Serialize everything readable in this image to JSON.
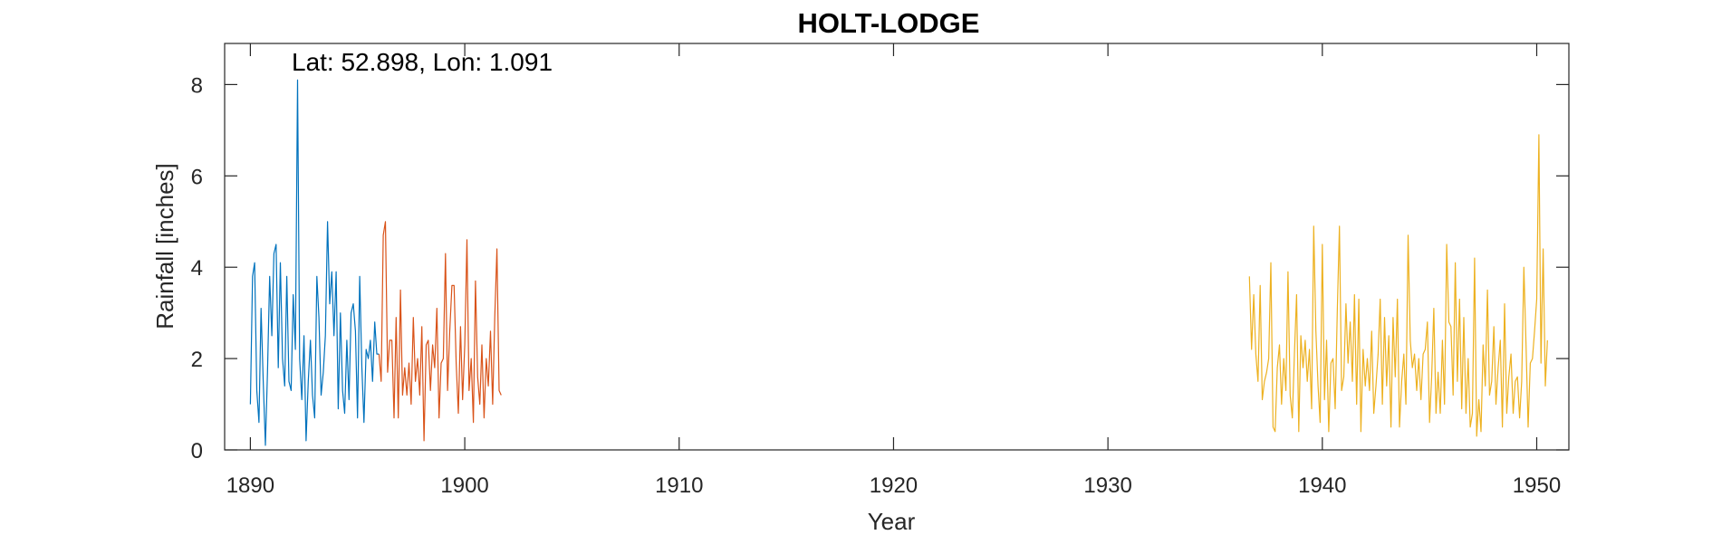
{
  "chart_data": {
    "type": "line",
    "title": "HOLT-LODGE",
    "xlabel": "Year",
    "ylabel": "Rainfall [inches]",
    "annotation": "Lat: 52.898, Lon: 1.091",
    "xlim": [
      1888.8,
      1951.5
    ],
    "ylim": [
      0,
      8.9
    ],
    "xticks": [
      1890,
      1900,
      1910,
      1920,
      1930,
      1940,
      1950
    ],
    "yticks": [
      0,
      2,
      4,
      6,
      8
    ],
    "grid": false,
    "legend": "none",
    "series": [
      {
        "color": "#0072BD",
        "x": [
          1890.0,
          1890.1,
          1890.2,
          1890.3,
          1890.4,
          1890.5,
          1890.6,
          1890.7,
          1890.8,
          1890.9,
          1891.0,
          1891.1,
          1891.2,
          1891.3,
          1891.4,
          1891.5,
          1891.6,
          1891.7,
          1891.8,
          1891.9,
          1892.0,
          1892.1,
          1892.2,
          1892.3,
          1892.4,
          1892.5,
          1892.6,
          1892.7,
          1892.8,
          1892.9,
          1893.0,
          1893.1,
          1893.2,
          1893.3,
          1893.4,
          1893.5,
          1893.6,
          1893.7,
          1893.8,
          1893.9,
          1894.0,
          1894.1,
          1894.2,
          1894.3,
          1894.4,
          1894.5,
          1894.6,
          1894.7,
          1894.8,
          1894.9,
          1895.0,
          1895.1,
          1895.2,
          1895.3,
          1895.4,
          1895.5,
          1895.6,
          1895.7,
          1895.8,
          1895.9,
          1896.0
        ],
        "values": [
          1.0,
          3.8,
          4.1,
          1.3,
          0.6,
          3.1,
          1.5,
          0.1,
          1.7,
          3.8,
          2.5,
          4.3,
          4.5,
          1.8,
          4.1,
          2.0,
          1.4,
          3.8,
          1.5,
          1.3,
          3.4,
          2.2,
          8.1,
          2.0,
          1.1,
          2.5,
          0.2,
          1.5,
          2.4,
          1.2,
          0.7,
          3.8,
          2.9,
          1.2,
          1.7,
          2.5,
          5.0,
          3.2,
          3.9,
          2.5,
          3.9,
          0.9,
          3.0,
          1.3,
          0.8,
          2.4,
          1.1,
          3.0,
          3.2,
          2.6,
          0.7,
          3.8,
          1.8,
          0.6,
          2.2,
          2.0,
          2.4,
          1.5,
          2.8,
          2.1,
          2.1
        ]
      },
      {
        "color": "#D95319",
        "x": [
          1896.0,
          1896.1,
          1896.2,
          1896.3,
          1896.4,
          1896.5,
          1896.6,
          1896.7,
          1896.8,
          1896.9,
          1897.0,
          1897.1,
          1897.2,
          1897.3,
          1897.4,
          1897.5,
          1897.6,
          1897.7,
          1897.8,
          1897.9,
          1898.0,
          1898.1,
          1898.2,
          1898.3,
          1898.4,
          1898.5,
          1898.6,
          1898.7,
          1898.8,
          1898.9,
          1899.0,
          1899.1,
          1899.2,
          1899.3,
          1899.4,
          1899.5,
          1899.6,
          1899.7,
          1899.8,
          1899.9,
          1900.0,
          1900.1,
          1900.2,
          1900.3,
          1900.4,
          1900.5,
          1900.6,
          1900.7,
          1900.8,
          1900.9,
          1901.0,
          1901.1,
          1901.2,
          1901.3,
          1901.4,
          1901.5,
          1901.6,
          1901.7
        ],
        "values": [
          2.1,
          1.5,
          4.7,
          5.0,
          1.7,
          2.4,
          2.4,
          0.7,
          2.9,
          0.7,
          3.5,
          1.2,
          1.8,
          1.2,
          1.9,
          1.0,
          2.9,
          1.5,
          2.0,
          1.2,
          2.7,
          0.2,
          2.3,
          2.4,
          1.3,
          2.3,
          1.8,
          3.1,
          0.7,
          1.9,
          2.0,
          4.3,
          1.3,
          2.6,
          3.6,
          3.6,
          1.9,
          0.8,
          2.7,
          1.1,
          2.3,
          4.6,
          1.3,
          2.0,
          0.6,
          3.7,
          1.6,
          1.0,
          2.3,
          0.7,
          2.0,
          1.4,
          2.6,
          1.0,
          2.9,
          4.4,
          1.3,
          1.2
        ]
      },
      {
        "color": "#EDB120",
        "x": [
          1936.6,
          1936.7,
          1936.8,
          1936.9,
          1937.0,
          1937.1,
          1937.2,
          1937.3,
          1937.4,
          1937.5,
          1937.6,
          1937.7,
          1937.8,
          1937.9,
          1938.0,
          1938.1,
          1938.2,
          1938.3,
          1938.4,
          1938.5,
          1938.6,
          1938.7,
          1938.8,
          1938.9,
          1939.0,
          1939.1,
          1939.2,
          1939.3,
          1939.4,
          1939.5,
          1939.6,
          1939.7,
          1939.8,
          1939.9,
          1940.0,
          1940.1,
          1940.2,
          1940.3,
          1940.4,
          1940.5,
          1940.6,
          1940.7,
          1940.8,
          1940.9,
          1941.0,
          1941.1,
          1941.2,
          1941.3,
          1941.4,
          1941.5,
          1941.6,
          1941.7,
          1941.8,
          1941.9,
          1942.0,
          1942.1,
          1942.2,
          1942.3,
          1942.4,
          1942.5,
          1942.6,
          1942.7,
          1942.8,
          1942.9,
          1943.0,
          1943.1,
          1943.2,
          1943.3,
          1943.4,
          1943.5,
          1943.6,
          1943.7,
          1943.8,
          1943.9,
          1944.0,
          1944.1,
          1944.2,
          1944.3,
          1944.4,
          1944.5,
          1944.6,
          1944.7,
          1944.8,
          1944.9,
          1945.0,
          1945.1,
          1945.2,
          1945.3,
          1945.4,
          1945.5,
          1945.6,
          1945.7,
          1945.8,
          1945.9,
          1946.0,
          1946.1,
          1946.2,
          1946.3,
          1946.4,
          1946.5,
          1946.6,
          1946.7,
          1946.8,
          1946.9,
          1947.0,
          1947.1,
          1947.2,
          1947.3,
          1947.4,
          1947.5,
          1947.6,
          1947.7,
          1947.8,
          1947.9,
          1948.0,
          1948.1,
          1948.2,
          1948.3,
          1948.4,
          1948.5,
          1948.6,
          1948.7,
          1948.8,
          1948.9,
          1949.0,
          1949.1,
          1949.2,
          1949.3,
          1949.4,
          1949.5,
          1949.6,
          1949.7,
          1949.8,
          1949.9,
          1950.0,
          1950.1,
          1950.2,
          1950.3,
          1950.4,
          1950.5
        ],
        "values": [
          3.8,
          2.2,
          3.4,
          2.1,
          1.5,
          3.6,
          1.1,
          1.5,
          1.7,
          2.0,
          4.1,
          0.5,
          0.4,
          1.8,
          2.3,
          1.0,
          2.0,
          1.3,
          3.9,
          1.2,
          0.7,
          2.1,
          3.4,
          0.4,
          2.5,
          1.8,
          2.4,
          1.5,
          2.2,
          0.9,
          4.9,
          2.6,
          1.4,
          0.6,
          4.5,
          1.1,
          2.4,
          0.4,
          1.9,
          2.0,
          0.9,
          3.1,
          4.9,
          1.3,
          1.6,
          3.2,
          1.9,
          2.8,
          1.5,
          3.4,
          1.0,
          3.3,
          0.4,
          2.2,
          1.4,
          2.0,
          1.3,
          2.6,
          0.8,
          1.4,
          2.1,
          3.3,
          1.0,
          2.9,
          1.4,
          2.5,
          0.5,
          2.9,
          1.6,
          3.3,
          0.5,
          1.5,
          2.1,
          1.0,
          4.7,
          2.4,
          1.8,
          2.1,
          1.3,
          2.0,
          1.1,
          2.1,
          2.2,
          2.8,
          0.6,
          1.6,
          3.1,
          0.8,
          1.7,
          0.8,
          2.4,
          1.0,
          4.5,
          2.8,
          2.7,
          1.2,
          4.1,
          1.5,
          3.3,
          0.9,
          2.9,
          0.8,
          2.0,
          0.5,
          0.8,
          4.2,
          0.3,
          1.1,
          0.4,
          2.3,
          1.4,
          3.5,
          1.2,
          1.5,
          2.7,
          1.0,
          1.8,
          2.4,
          0.5,
          3.2,
          0.8,
          1.6,
          2.1,
          0.8,
          1.5,
          1.6,
          0.7,
          1.5,
          4.0,
          2.3,
          0.5,
          1.9,
          2.0,
          2.6,
          3.3,
          6.9,
          1.9,
          4.4,
          1.4,
          2.4
        ]
      }
    ]
  }
}
